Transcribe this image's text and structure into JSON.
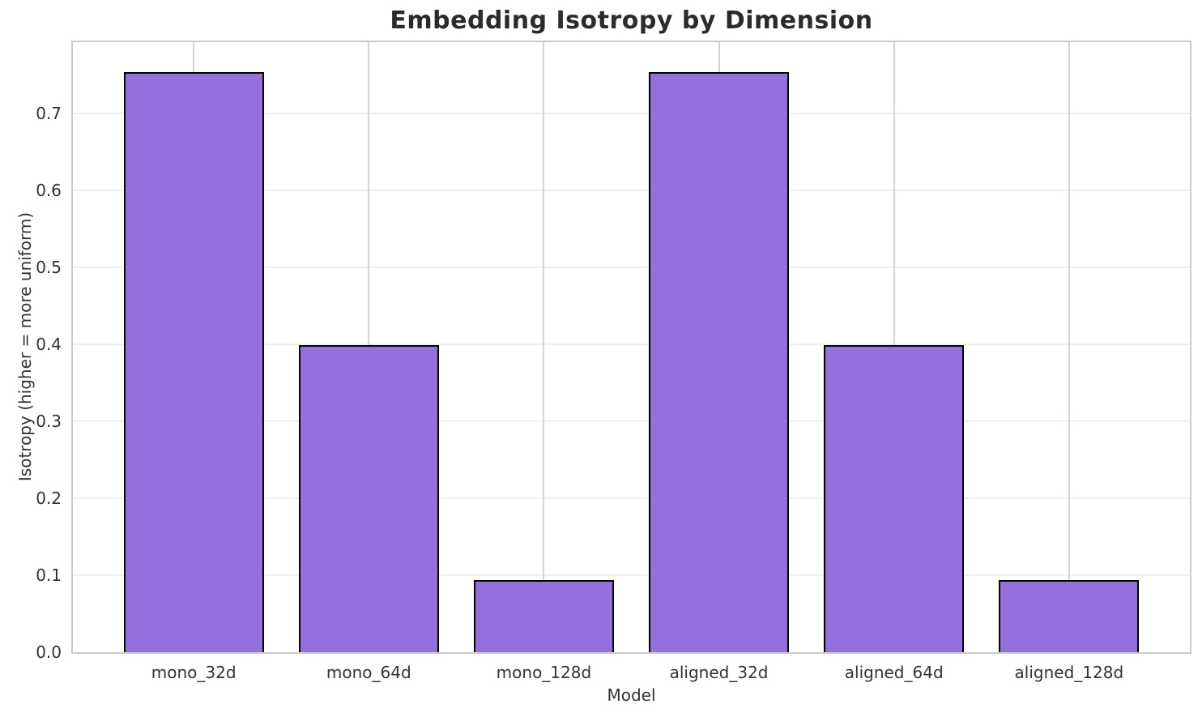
{
  "chart_data": {
    "type": "bar",
    "title": "Embedding Isotropy by Dimension",
    "xlabel": "Model",
    "ylabel": "Isotropy (higher = more uniform)",
    "categories": [
      "mono_32d",
      "mono_64d",
      "mono_128d",
      "aligned_32d",
      "aligned_64d",
      "aligned_128d"
    ],
    "values": [
      0.754,
      0.399,
      0.094,
      0.754,
      0.399,
      0.094
    ],
    "ylim": [
      0,
      0.793
    ],
    "yticks": [
      0.0,
      0.1,
      0.2,
      0.3,
      0.4,
      0.5,
      0.6,
      0.7
    ],
    "grid": true,
    "legend": "none",
    "bar_color": "#9370DB",
    "bar_edge_color": "#000000",
    "colors": {
      "background": "#ffffff",
      "title_text": "#2b2b2b",
      "tick_text": "#333333",
      "h_grid": "#efefef",
      "v_grid": "#d4d4d4",
      "spine": "#cccccc"
    }
  }
}
